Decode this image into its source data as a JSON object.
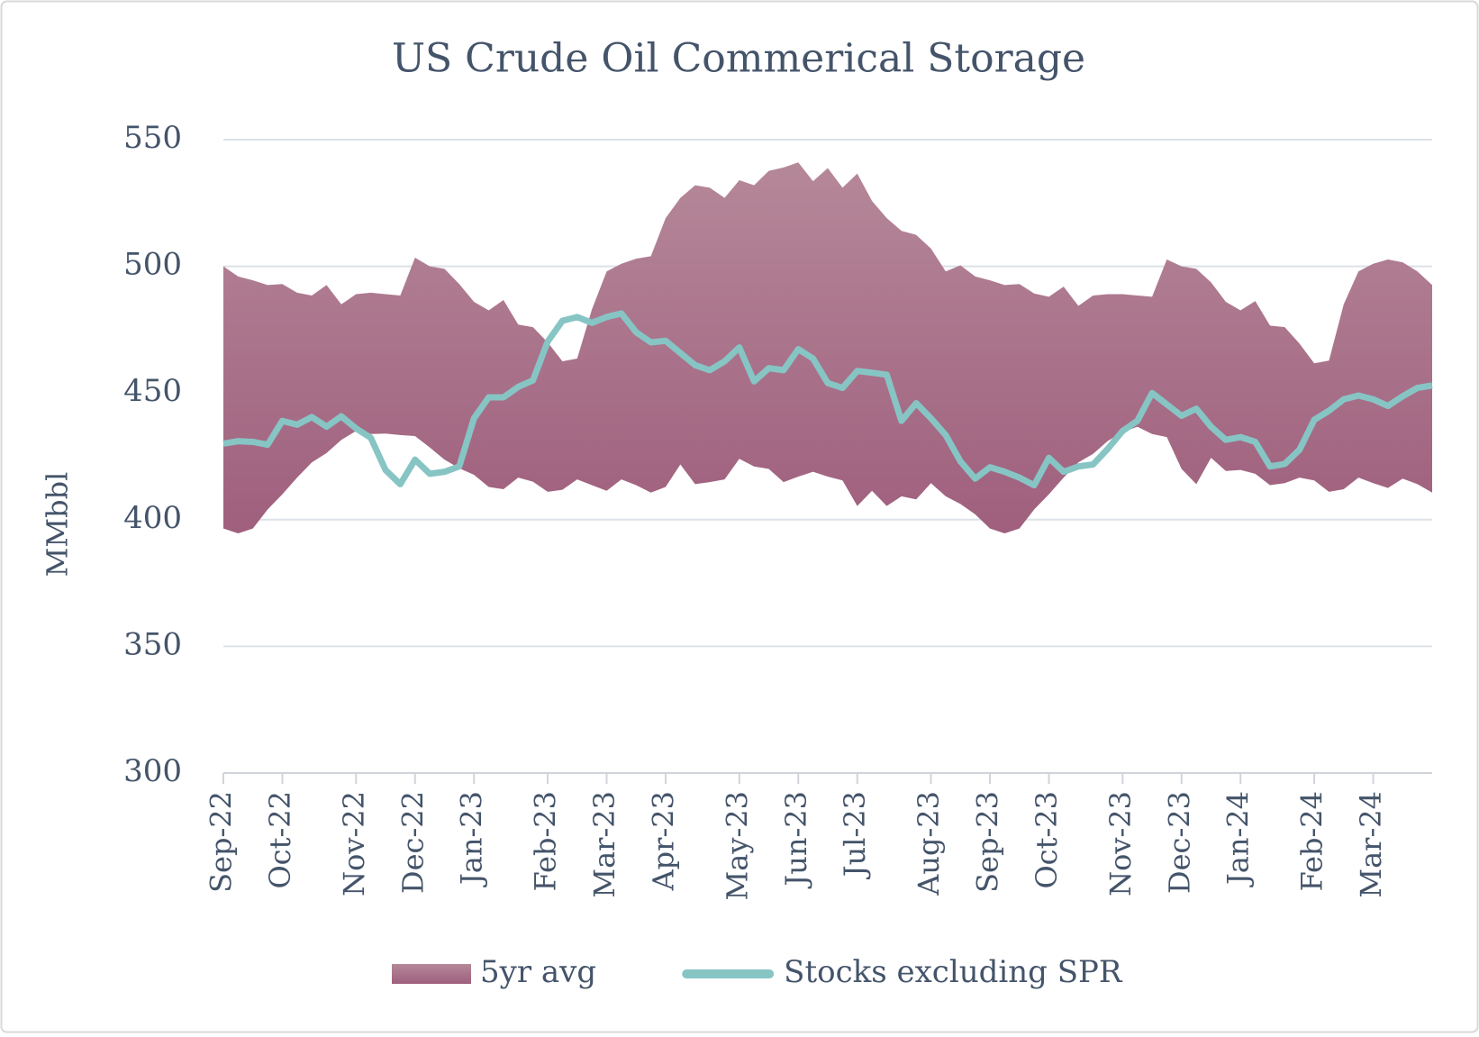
{
  "chart_data": {
    "type": "line",
    "title": "US Crude Oil Commerical Storage",
    "y_label": "MMbbl",
    "categories": [
      "Sep-22",
      null,
      null,
      null,
      "Oct-22",
      null,
      null,
      null,
      null,
      "Nov-22",
      null,
      null,
      null,
      "Dec-22",
      null,
      null,
      null,
      "Jan-23",
      null,
      null,
      null,
      null,
      "Feb-23",
      null,
      null,
      null,
      "Mar-23",
      null,
      null,
      null,
      "Apr-23",
      null,
      null,
      null,
      null,
      "May-23",
      null,
      null,
      null,
      "Jun-23",
      null,
      null,
      null,
      "Jul-23",
      null,
      null,
      null,
      null,
      "Aug-23",
      null,
      null,
      null,
      "Sep-23",
      null,
      null,
      null,
      "Oct-23",
      null,
      null,
      null,
      null,
      "Nov-23",
      null,
      null,
      null,
      "Dec-23",
      null,
      null,
      null,
      "Jan-24",
      null,
      null,
      null,
      null,
      "Feb-24",
      null,
      null,
      null,
      "Mar-24",
      null,
      null,
      null,
      null
    ],
    "series": [
      {
        "name": "5yr avg",
        "kind": "band",
        "color": "#a8708a",
        "high": [
          500,
          496,
          494.5,
          492.6,
          493,
          489.6,
          488.5,
          492.6,
          485,
          489,
          489.6,
          489,
          488.5,
          503.4,
          500,
          499,
          493,
          486,
          482.6,
          486.7,
          477,
          476,
          470,
          462.5,
          463.6,
          483,
          498,
          501,
          503,
          504,
          519,
          527,
          532,
          531,
          527,
          534,
          532,
          537.7,
          539,
          541,
          533.6,
          538.8,
          531,
          536.6,
          525.8,
          519,
          514,
          512.4,
          507,
          498,
          500.4,
          496,
          494.5,
          492.6,
          493,
          489.3,
          488,
          492,
          484.4,
          488.5,
          489,
          489,
          488.5,
          488,
          502.7,
          500,
          499,
          493.7,
          486,
          482.6,
          486.3,
          476.6,
          476,
          469.5,
          461.7,
          462.8,
          485,
          498,
          501,
          502.7,
          501.6,
          498,
          492.6
        ],
        "low": [
          396.5,
          394.6,
          396.5,
          404,
          410,
          416.6,
          422.6,
          426.3,
          431.5,
          435,
          433.8,
          434,
          433.4,
          433,
          428.5,
          423.7,
          420.3,
          417.7,
          412.9,
          412,
          416.6,
          415,
          411,
          411.8,
          415.9,
          413.6,
          411.4,
          415.9,
          413.6,
          410.7,
          412.9,
          421.8,
          414,
          414.8,
          415.9,
          424,
          421,
          420,
          414.8,
          417,
          418.9,
          417,
          415.5,
          405.4,
          411.4,
          405.4,
          409.2,
          408,
          414.4,
          409.2,
          406.2,
          402.1,
          396.5,
          394.6,
          396.5,
          404,
          410,
          416.6,
          422.6,
          426,
          431.1,
          434.5,
          436.7,
          433.8,
          432.6,
          420,
          414,
          424.4,
          419.2,
          419.6,
          418.1,
          413.6,
          414.4,
          416.6,
          415.5,
          411,
          412,
          416.6,
          414.4,
          412.5,
          416.2,
          414,
          410.7
        ]
      },
      {
        "name": "Stocks excluding SPR",
        "kind": "line",
        "color": "#86c5c4",
        "values": [
          430,
          431,
          430.7,
          429.6,
          439,
          437.5,
          440.5,
          436.7,
          440.8,
          436,
          432.3,
          419.6,
          414,
          423.7,
          418.1,
          418.9,
          421,
          440,
          448.3,
          448.3,
          452.4,
          455,
          470.3,
          478.5,
          480,
          477.7,
          480,
          481.4,
          474,
          470,
          470.6,
          465.8,
          461,
          459,
          462.5,
          468,
          454.6,
          459.8,
          459,
          467.3,
          463.6,
          453.9,
          452,
          458.7,
          458,
          457.2,
          439,
          446,
          440,
          433.4,
          423,
          416.2,
          420.7,
          418.9,
          416.6,
          413.6,
          424.4,
          418.9,
          421,
          421.8,
          428,
          435,
          439,
          450,
          445.5,
          441,
          443.8,
          436.7,
          431.5,
          432.6,
          430.7,
          421,
          422,
          427.6,
          439.4,
          443,
          447.5,
          449,
          447.5,
          444.9,
          448.7,
          452,
          453
        ]
      }
    ],
    "ylim": [
      300,
      550
    ],
    "yticks": [
      300,
      350,
      400,
      450,
      500,
      550
    ],
    "grid": true,
    "legend": "bottom"
  }
}
